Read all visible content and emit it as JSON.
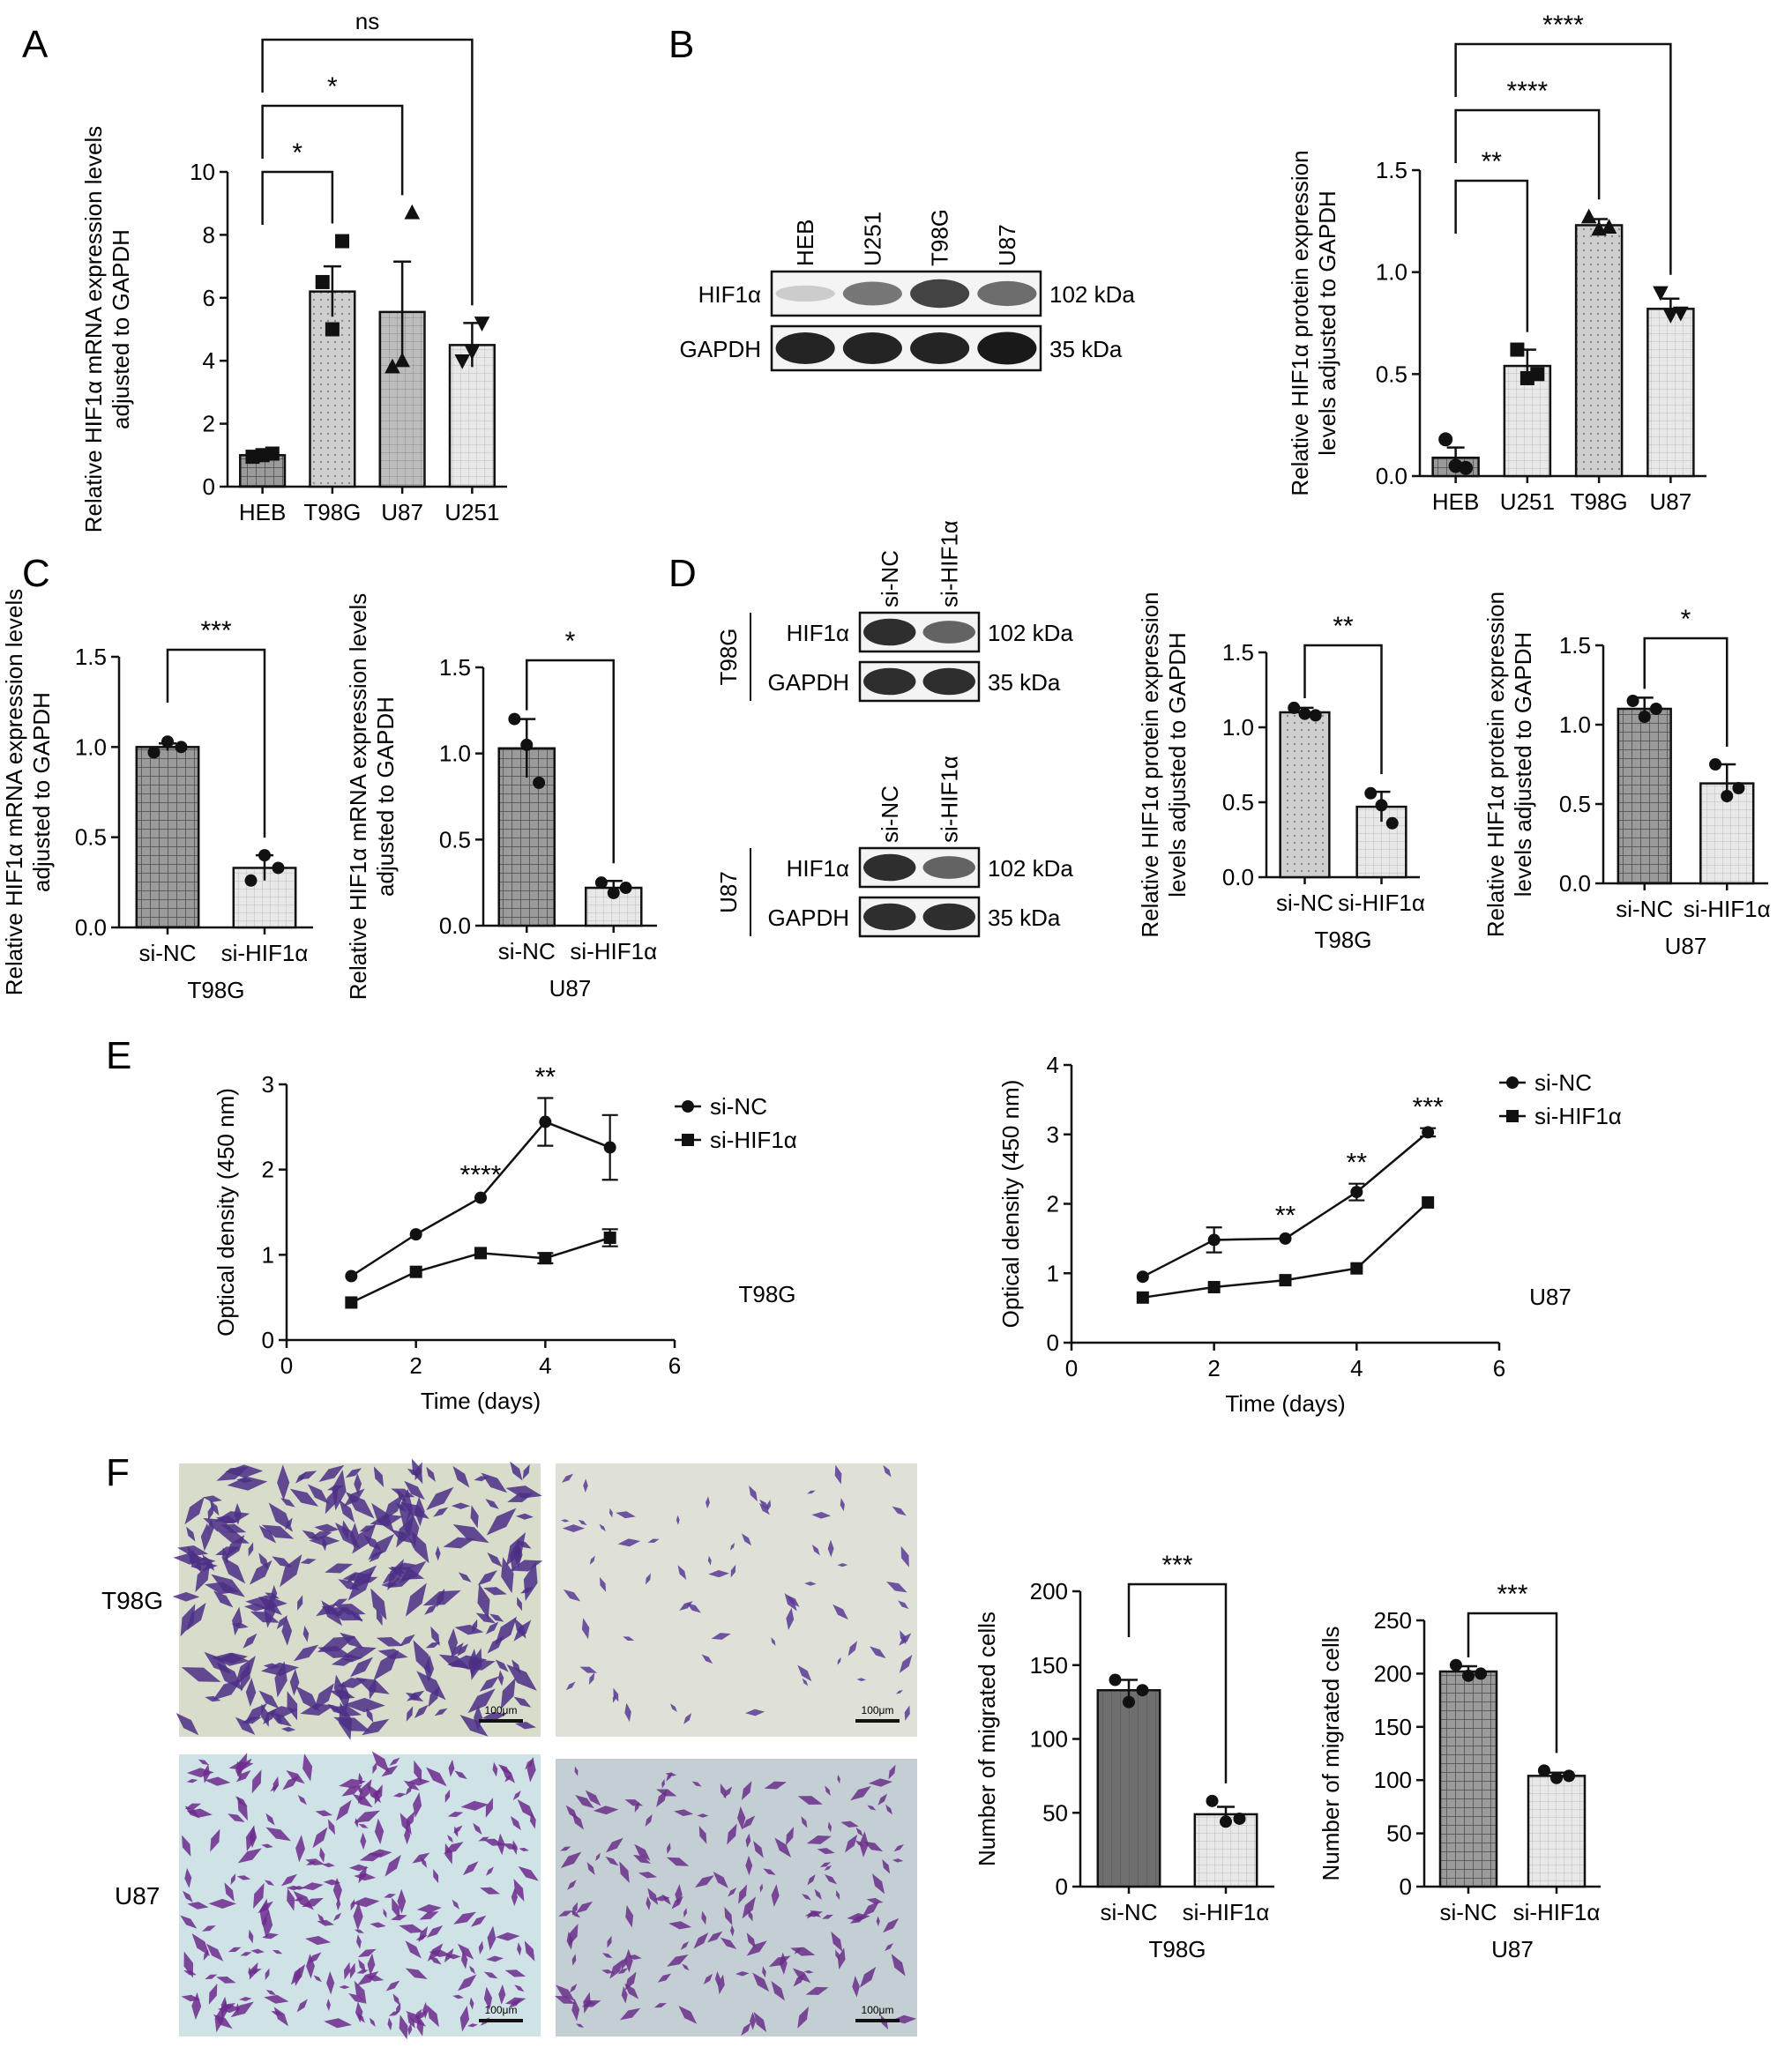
{
  "panel_letters": {
    "A": "A",
    "B": "B",
    "C": "C",
    "D": "D",
    "E": "E",
    "F": "F"
  },
  "colors": {
    "ink": "#111111",
    "dark_bar": "#7d7d7d",
    "mid_bar": "#bdbdbd",
    "light_bar": "#ececec",
    "marker": "#111111"
  },
  "western_blots": {
    "B": {
      "lanes": [
        "HEB",
        "U251",
        "T98G",
        "U87"
      ],
      "rows": [
        {
          "label": "HIF1α",
          "size": "102 kDa",
          "band_intensity": [
            0.15,
            0.55,
            0.8,
            0.6
          ]
        },
        {
          "label": "GAPDH",
          "size": "35 kDa",
          "band_intensity": [
            0.95,
            0.95,
            0.95,
            1.0
          ]
        }
      ]
    },
    "D_T98G": {
      "cell_line": "T98G",
      "lanes": [
        "si-NC",
        "si-HIF1α"
      ],
      "rows": [
        {
          "label": "HIF1α",
          "size": "102 kDa",
          "band_intensity": [
            0.9,
            0.65
          ]
        },
        {
          "label": "GAPDH",
          "size": "35 kDa",
          "band_intensity": [
            0.9,
            0.9
          ]
        }
      ]
    },
    "D_U87": {
      "cell_line": "U87",
      "lanes": [
        "si-NC",
        "si-HIF1α"
      ],
      "rows": [
        {
          "label": "HIF1α",
          "size": "102 kDa",
          "band_intensity": [
            0.9,
            0.65
          ]
        },
        {
          "label": "GAPDH",
          "size": "35 kDa",
          "band_intensity": [
            0.9,
            0.9
          ]
        }
      ]
    }
  },
  "micrographs": {
    "row_labels": [
      "T98G",
      "U87"
    ],
    "scale_bar_label": "100μm",
    "cell_density": {
      "T98G_siNC": "dense",
      "T98G_siHIF1a": "sparse",
      "U87_siNC": "dense",
      "U87_siHIF1a": "moderate"
    }
  },
  "chart_data": [
    {
      "id": "A",
      "type": "bar",
      "categories": [
        "HEB",
        "T98G",
        "U87",
        "U251"
      ],
      "values": [
        1.0,
        6.2,
        5.55,
        4.5
      ],
      "errors": [
        0.05,
        0.8,
        1.6,
        0.7
      ],
      "points": [
        [
          0.95,
          1.0,
          1.05
        ],
        [
          6.5,
          5.0,
          7.8
        ],
        [
          3.8,
          4.0,
          8.7
        ],
        [
          4.0,
          4.3,
          5.2
        ]
      ],
      "markers": [
        "square",
        "square",
        "triangle",
        "triangle-down"
      ],
      "ylabel": "Relative HIF1α mRNA expression levels adjusted to GAPDH",
      "ylim": [
        0,
        10
      ],
      "yticks": [
        "0",
        "2",
        "4",
        "6",
        "8",
        "10"
      ],
      "significance": [
        {
          "from": 0,
          "to": 1,
          "label": "*"
        },
        {
          "from": 0,
          "to": 2,
          "label": "*"
        },
        {
          "from": 0,
          "to": 3,
          "label": "ns"
        }
      ]
    },
    {
      "id": "B",
      "type": "bar",
      "categories": [
        "HEB",
        "U251",
        "T98G",
        "U87"
      ],
      "values": [
        0.09,
        0.54,
        1.23,
        0.82
      ],
      "errors": [
        0.05,
        0.08,
        0.03,
        0.05
      ],
      "points": [
        [
          0.18,
          0.05,
          0.04
        ],
        [
          0.62,
          0.48,
          0.5
        ],
        [
          1.27,
          1.21,
          1.22
        ],
        [
          0.9,
          0.79,
          0.8
        ]
      ],
      "markers": [
        "circle",
        "square",
        "triangle",
        "triangle-down"
      ],
      "ylabel": "Relative HIF1α protein expression levels adjusted to GAPDH",
      "ylim": [
        0,
        1.5
      ],
      "yticks": [
        "0.0",
        "0.5",
        "1.0",
        "1.5"
      ],
      "significance": [
        {
          "from": 0,
          "to": 1,
          "label": "**"
        },
        {
          "from": 0,
          "to": 2,
          "label": "****"
        },
        {
          "from": 0,
          "to": 3,
          "label": "****"
        }
      ]
    },
    {
      "id": "C1",
      "type": "bar",
      "categories": [
        "si-NC",
        "si-HIF1α"
      ],
      "values": [
        1.0,
        0.33
      ],
      "errors": [
        0.02,
        0.07
      ],
      "points": [
        [
          0.97,
          1.03,
          1.0
        ],
        [
          0.26,
          0.4,
          0.33
        ]
      ],
      "ylabel": "Relative HIF1α mRNA expression levels adjusted to GAPDH",
      "xlabel": "T98G",
      "ylim": [
        0,
        1.5
      ],
      "yticks": [
        "0.0",
        "0.5",
        "1.0",
        "1.5"
      ],
      "significance": [
        {
          "from": 0,
          "to": 1,
          "label": "***"
        }
      ]
    },
    {
      "id": "C2",
      "type": "bar",
      "categories": [
        "si-NC",
        "si-HIF1α"
      ],
      "values": [
        1.03,
        0.22
      ],
      "errors": [
        0.17,
        0.04
      ],
      "points": [
        [
          1.2,
          1.05,
          0.83
        ],
        [
          0.25,
          0.19,
          0.22
        ]
      ],
      "ylabel": "Relative HIF1α mRNA expression levels adjusted to GAPDH",
      "xlabel": "U87",
      "ylim": [
        0,
        1.5
      ],
      "yticks": [
        "0.0",
        "0.5",
        "1.0",
        "1.5"
      ],
      "significance": [
        {
          "from": 0,
          "to": 1,
          "label": "*"
        }
      ]
    },
    {
      "id": "D1",
      "type": "bar",
      "categories": [
        "si-NC",
        "si-HIF1α"
      ],
      "values": [
        1.1,
        0.47
      ],
      "errors": [
        0.03,
        0.1
      ],
      "points": [
        [
          1.13,
          1.09,
          1.08
        ],
        [
          0.56,
          0.48,
          0.36
        ]
      ],
      "ylabel": "Relative HIF1α protein expression levels adjusted to GAPDH",
      "xlabel": "T98G",
      "ylim": [
        0,
        1.5
      ],
      "yticks": [
        "0.0",
        "0.5",
        "1.0",
        "1.5"
      ],
      "significance": [
        {
          "from": 0,
          "to": 1,
          "label": "**"
        }
      ]
    },
    {
      "id": "D2",
      "type": "bar",
      "categories": [
        "si-NC",
        "si-HIF1α"
      ],
      "values": [
        1.1,
        0.63
      ],
      "errors": [
        0.07,
        0.12
      ],
      "points": [
        [
          1.15,
          1.05,
          1.1
        ],
        [
          0.75,
          0.55,
          0.6
        ]
      ],
      "ylabel": "Relative HIF1α protein expression levels adjusted to GAPDH",
      "xlabel": "U87",
      "ylim": [
        0,
        1.5
      ],
      "yticks": [
        "0.0",
        "0.5",
        "1.0",
        "1.5"
      ],
      "significance": [
        {
          "from": 0,
          "to": 1,
          "label": "*"
        }
      ]
    },
    {
      "id": "E1",
      "type": "line",
      "xlabel": "Time (days)",
      "ylabel": "Optical density (450 nm)",
      "panel_label": "T98G",
      "xlim": [
        0,
        6
      ],
      "xticks": [
        "0",
        "2",
        "4",
        "6"
      ],
      "ylim": [
        0,
        3
      ],
      "yticks": [
        "0",
        "1",
        "2",
        "3"
      ],
      "legend": "right",
      "series": [
        {
          "name": "si-NC",
          "marker": "circle",
          "x": [
            1,
            2,
            3,
            4,
            5
          ],
          "y": [
            0.75,
            1.24,
            1.67,
            2.56,
            2.26
          ],
          "err": [
            0.02,
            0.03,
            0.02,
            0.28,
            0.38
          ]
        },
        {
          "name": "si-HIF1α",
          "marker": "square",
          "x": [
            1,
            2,
            3,
            4,
            5
          ],
          "y": [
            0.44,
            0.8,
            1.02,
            0.96,
            1.2
          ],
          "err": [
            0.02,
            0.02,
            0.02,
            0.06,
            0.1
          ]
        }
      ],
      "annotations": [
        {
          "x": 3,
          "label": "****"
        },
        {
          "x": 4,
          "label": "**"
        }
      ]
    },
    {
      "id": "E2",
      "type": "line",
      "xlabel": "Time (days)",
      "ylabel": "Optical density (450 nm)",
      "panel_label": "U87",
      "xlim": [
        0,
        6
      ],
      "xticks": [
        "0",
        "2",
        "4",
        "6"
      ],
      "ylim": [
        0,
        4
      ],
      "yticks": [
        "0",
        "1",
        "2",
        "3",
        "4"
      ],
      "legend": "top-right",
      "series": [
        {
          "name": "si-NC",
          "marker": "circle",
          "x": [
            1,
            2,
            3,
            4,
            5
          ],
          "y": [
            0.95,
            1.48,
            1.5,
            2.17,
            3.03
          ],
          "err": [
            0.03,
            0.18,
            0.03,
            0.12,
            0.06
          ]
        },
        {
          "name": "si-HIF1α",
          "marker": "square",
          "x": [
            1,
            2,
            3,
            4,
            5
          ],
          "y": [
            0.65,
            0.8,
            0.9,
            1.07,
            2.02
          ],
          "err": [
            0.02,
            0.02,
            0.03,
            0.02,
            0.02
          ]
        }
      ],
      "annotations": [
        {
          "x": 3,
          "label": "**"
        },
        {
          "x": 4,
          "label": "**"
        },
        {
          "x": 5,
          "label": "***"
        }
      ]
    },
    {
      "id": "F1",
      "type": "bar",
      "categories": [
        "si-NC",
        "si-HIF1α"
      ],
      "values": [
        133,
        49
      ],
      "errors": [
        7,
        5
      ],
      "points": [
        [
          140,
          125,
          133
        ],
        [
          58,
          44,
          46
        ]
      ],
      "ylabel": "Number of migrated cells",
      "xlabel": "T98G",
      "ylim": [
        0,
        200
      ],
      "yticks": [
        "0",
        "50",
        "100",
        "150",
        "200"
      ],
      "significance": [
        {
          "from": 0,
          "to": 1,
          "label": "***"
        }
      ]
    },
    {
      "id": "F2",
      "type": "bar",
      "categories": [
        "si-NC",
        "si-HIF1α"
      ],
      "values": [
        202,
        104
      ],
      "errors": [
        5,
        3
      ],
      "points": [
        [
          208,
          198,
          200
        ],
        [
          109,
          102,
          104
        ]
      ],
      "ylabel": "Number of migrated cells",
      "xlabel": "U87",
      "ylim": [
        0,
        250
      ],
      "yticks": [
        "0",
        "50",
        "100",
        "150",
        "200",
        "250"
      ],
      "significance": [
        {
          "from": 0,
          "to": 1,
          "label": "***"
        }
      ]
    }
  ]
}
